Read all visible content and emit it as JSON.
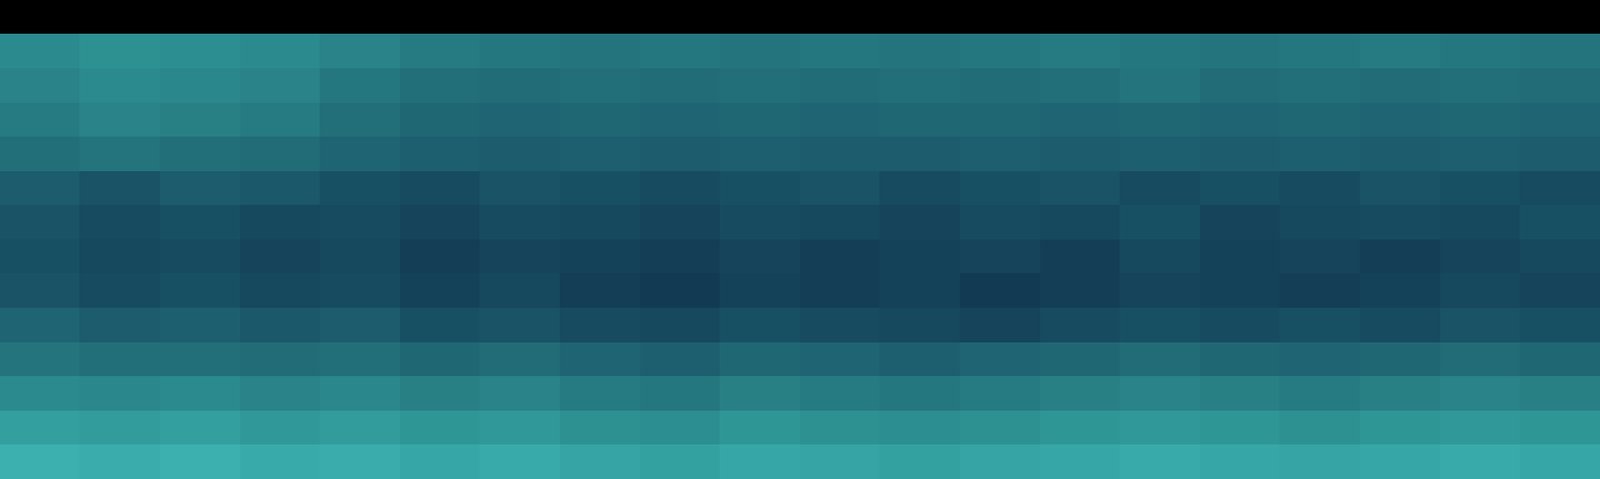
{
  "chart_data": {
    "type": "heatmap",
    "tick_labels": false,
    "zlim": [
      0,
      1
    ],
    "cells": [
      [
        0,
        0,
        0,
        0,
        0,
        0,
        0,
        0,
        0,
        0,
        0,
        0,
        0,
        0,
        0,
        0,
        0,
        0,
        0,
        0
      ],
      [
        0.62,
        0.64,
        0.63,
        0.62,
        0.6,
        0.58,
        0.57,
        0.56,
        0.57,
        0.56,
        0.57,
        0.56,
        0.57,
        0.58,
        0.57,
        0.56,
        0.57,
        0.58,
        0.57,
        0.56
      ],
      [
        0.6,
        0.62,
        0.61,
        0.6,
        0.57,
        0.55,
        0.54,
        0.55,
        0.54,
        0.55,
        0.54,
        0.55,
        0.54,
        0.55,
        0.56,
        0.54,
        0.55,
        0.54,
        0.55,
        0.54
      ],
      [
        0.58,
        0.6,
        0.59,
        0.58,
        0.55,
        0.53,
        0.52,
        0.53,
        0.52,
        0.53,
        0.52,
        0.53,
        0.53,
        0.52,
        0.53,
        0.52,
        0.53,
        0.52,
        0.53,
        0.52
      ],
      [
        0.55,
        0.56,
        0.55,
        0.54,
        0.52,
        0.51,
        0.5,
        0.51,
        0.5,
        0.51,
        0.5,
        0.5,
        0.51,
        0.5,
        0.51,
        0.5,
        0.51,
        0.5,
        0.51,
        0.5
      ],
      [
        0.5,
        0.48,
        0.5,
        0.49,
        0.47,
        0.46,
        0.48,
        0.47,
        0.46,
        0.47,
        0.48,
        0.46,
        0.47,
        0.48,
        0.46,
        0.47,
        0.46,
        0.48,
        0.47,
        0.46
      ],
      [
        0.48,
        0.46,
        0.47,
        0.45,
        0.46,
        0.44,
        0.46,
        0.45,
        0.44,
        0.46,
        0.45,
        0.44,
        0.46,
        0.45,
        0.47,
        0.44,
        0.45,
        0.46,
        0.45,
        0.47
      ],
      [
        0.47,
        0.45,
        0.46,
        0.44,
        0.45,
        0.42,
        0.44,
        0.43,
        0.42,
        0.44,
        0.42,
        0.43,
        0.44,
        0.42,
        0.45,
        0.43,
        0.44,
        0.42,
        0.44,
        0.45
      ],
      [
        0.48,
        0.46,
        0.47,
        0.45,
        0.46,
        0.43,
        0.45,
        0.42,
        0.41,
        0.43,
        0.42,
        0.43,
        0.41,
        0.42,
        0.44,
        0.43,
        0.42,
        0.43,
        0.45,
        0.44
      ],
      [
        0.52,
        0.5,
        0.51,
        0.49,
        0.5,
        0.47,
        0.48,
        0.46,
        0.45,
        0.47,
        0.46,
        0.45,
        0.44,
        0.46,
        0.47,
        0.46,
        0.47,
        0.46,
        0.48,
        0.47
      ],
      [
        0.56,
        0.55,
        0.55,
        0.54,
        0.55,
        0.53,
        0.54,
        0.52,
        0.51,
        0.53,
        0.52,
        0.51,
        0.52,
        0.53,
        0.54,
        0.53,
        0.52,
        0.53,
        0.54,
        0.53
      ],
      [
        0.62,
        0.61,
        0.62,
        0.6,
        0.61,
        0.59,
        0.6,
        0.58,
        0.57,
        0.59,
        0.58,
        0.57,
        0.58,
        0.59,
        0.6,
        0.59,
        0.58,
        0.59,
        0.6,
        0.59
      ],
      [
        0.68,
        0.67,
        0.68,
        0.66,
        0.67,
        0.65,
        0.66,
        0.64,
        0.63,
        0.65,
        0.64,
        0.63,
        0.64,
        0.65,
        0.66,
        0.65,
        0.64,
        0.65,
        0.66,
        0.65
      ],
      [
        0.74,
        0.73,
        0.74,
        0.72,
        0.73,
        0.71,
        0.72,
        0.7,
        0.69,
        0.71,
        0.7,
        0.69,
        0.7,
        0.71,
        0.72,
        0.71,
        0.7,
        0.71,
        0.72,
        0.71
      ]
    ]
  }
}
